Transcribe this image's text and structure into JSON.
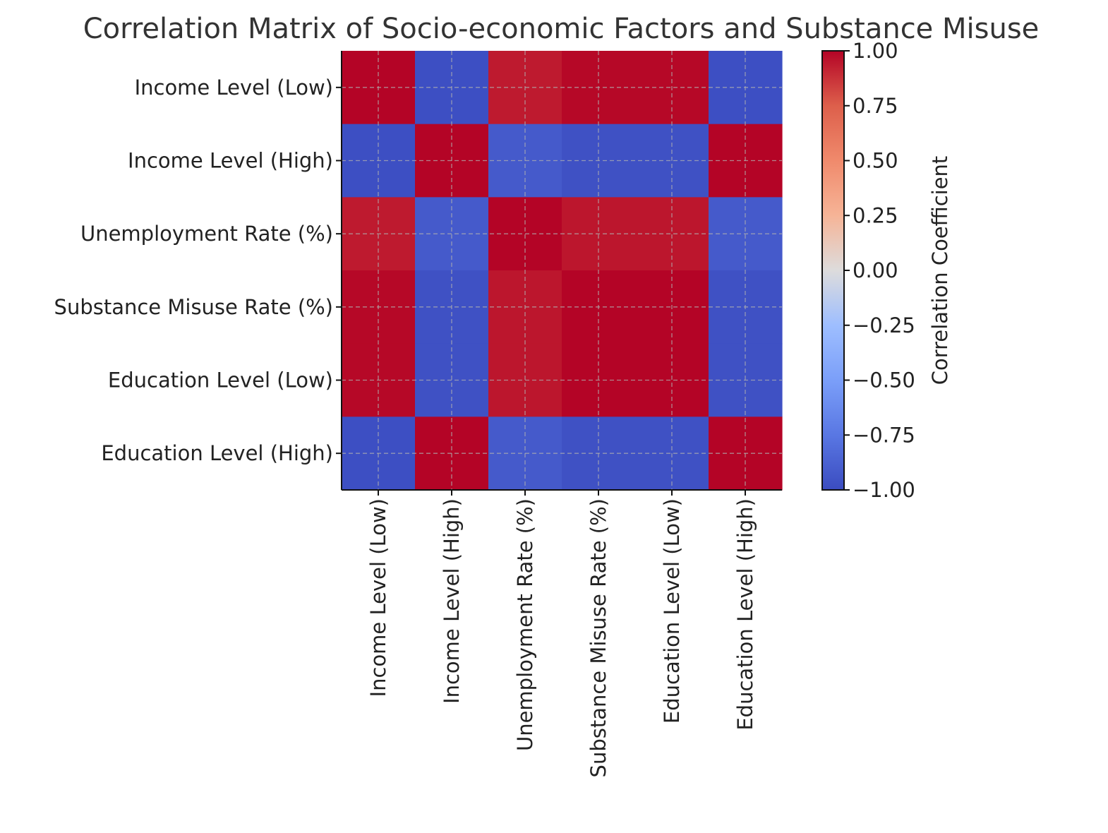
{
  "chart_data": {
    "type": "heatmap",
    "title": "Correlation Matrix of Socio-economic Factors and Substance Misuse",
    "row_labels": [
      "Income Level (Low)",
      "Income Level (High)",
      "Unemployment Rate (%)",
      "Substance Misuse Rate (%)",
      "Education Level (Low)",
      "Education Level (High)"
    ],
    "col_labels": [
      "Income Level (Low)",
      "Income Level (High)",
      "Unemployment Rate (%)",
      "Substance Misuse Rate (%)",
      "Education Level (Low)",
      "Education Level (High)"
    ],
    "values": [
      [
        1.0,
        -0.98,
        0.94,
        0.99,
        0.99,
        -0.98
      ],
      [
        -0.98,
        1.0,
        -0.92,
        -0.97,
        -0.97,
        1.0
      ],
      [
        0.94,
        -0.92,
        1.0,
        0.95,
        0.95,
        -0.92
      ],
      [
        0.99,
        -0.97,
        0.95,
        1.0,
        1.0,
        -0.97
      ],
      [
        0.99,
        -0.97,
        0.95,
        1.0,
        1.0,
        -0.97
      ],
      [
        -0.98,
        1.0,
        -0.92,
        -0.97,
        -0.97,
        1.0
      ]
    ],
    "colormap": "coolwarm",
    "vmin": -1.0,
    "vmax": 1.0,
    "colorbar": {
      "label": "Correlation Coefficient",
      "ticks": [
        1.0,
        0.75,
        0.5,
        0.25,
        0.0,
        -0.25,
        -0.5,
        -0.75,
        -1.0
      ],
      "tick_labels": [
        "1.00",
        "0.75",
        "0.50",
        "0.25",
        "0.00",
        "−0.25",
        "−0.50",
        "−0.75",
        "−1.00"
      ]
    },
    "grid": true,
    "grid_style": "dashed"
  }
}
